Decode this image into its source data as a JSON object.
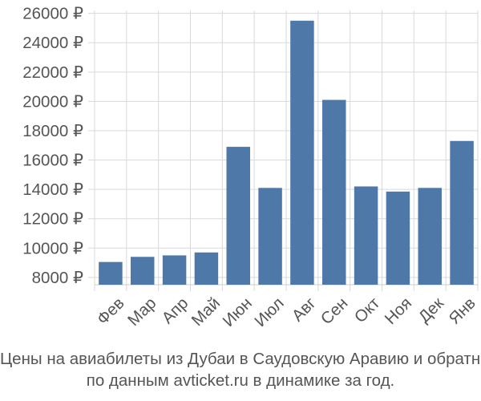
{
  "chart_data": {
    "type": "bar",
    "categories": [
      "Фев",
      "Мар",
      "Апр",
      "Май",
      "Июн",
      "Июл",
      "Авг",
      "Сен",
      "Окт",
      "Ноя",
      "Дек",
      "Янв"
    ],
    "values": [
      9050,
      9400,
      9500,
      9700,
      16900,
      14100,
      25500,
      20100,
      14200,
      13850,
      14100,
      17300
    ],
    "y_ticks": [
      "8000 ₽",
      "10000 ₽",
      "12000 ₽",
      "14000 ₽",
      "16000 ₽",
      "18000 ₽",
      "20000 ₽",
      "22000 ₽",
      "24000 ₽",
      "26000 ₽"
    ],
    "y_tick_values": [
      8000,
      10000,
      12000,
      14000,
      16000,
      18000,
      20000,
      22000,
      24000,
      26000
    ],
    "ylim": [
      7500,
      26200
    ],
    "title": "",
    "xlabel": "",
    "ylabel": "",
    "grid": true,
    "bar_color": "#4d78a8",
    "grid_color": "#d9d9d9"
  },
  "caption": {
    "line1": "Цены на авиабилеты из Дубаи в Саудовскую Аравию и обратно",
    "line2": "по данным avticket.ru в динамике за год."
  }
}
